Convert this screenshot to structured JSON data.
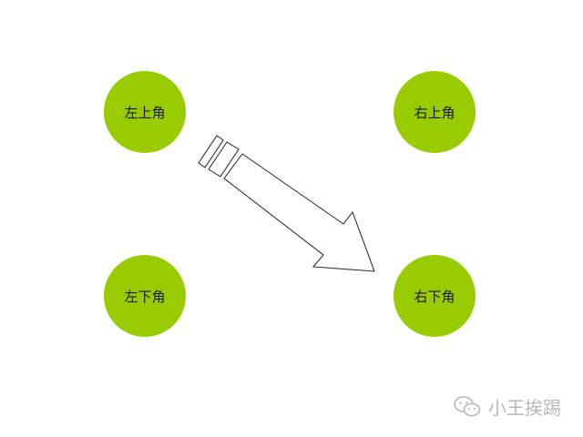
{
  "colors": {
    "node_fill": "#99cc00",
    "arrow_stroke": "#222222",
    "watermark": "#b8b8b8"
  },
  "nodes": {
    "top_left": {
      "label": "左上角"
    },
    "top_right": {
      "label": "右上角"
    },
    "bottom_left": {
      "label": "左下角"
    },
    "bottom_right": {
      "label": "右下角"
    }
  },
  "arrow": {
    "from": "top_left",
    "to": "bottom_right",
    "style": "outlined block arrow with two tail stripes"
  },
  "watermark": {
    "icon": "wechat-icon",
    "text": "小王挨踢"
  }
}
